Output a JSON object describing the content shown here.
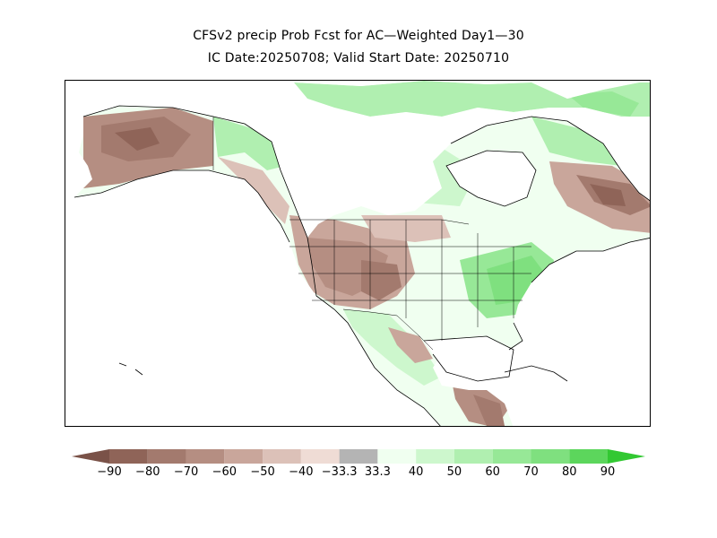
{
  "title": {
    "line1": "CFSv2 precip Prob Fcst for AC—Weighted Day1—30",
    "line2": "IC Date:20250708; Valid Start Date: 20250710"
  },
  "colors": {
    "brown": [
      "#7a5248",
      "#8f6458",
      "#a37a6e",
      "#b58e82",
      "#c9a69b",
      "#dcc1b8",
      "#efdcd5"
    ],
    "neutral": "#b4b4b4",
    "green": [
      "#f0fff0",
      "#cdf7cd",
      "#b0efb0",
      "#97e897",
      "#7fe07f",
      "#5cd65c",
      "#32c832"
    ]
  },
  "colorbar": {
    "labels": [
      "−90",
      "−80",
      "−70",
      "−60",
      "−50",
      "−40",
      "−33.3",
      "33.3",
      "40",
      "50",
      "60",
      "70",
      "80",
      "90"
    ]
  }
}
